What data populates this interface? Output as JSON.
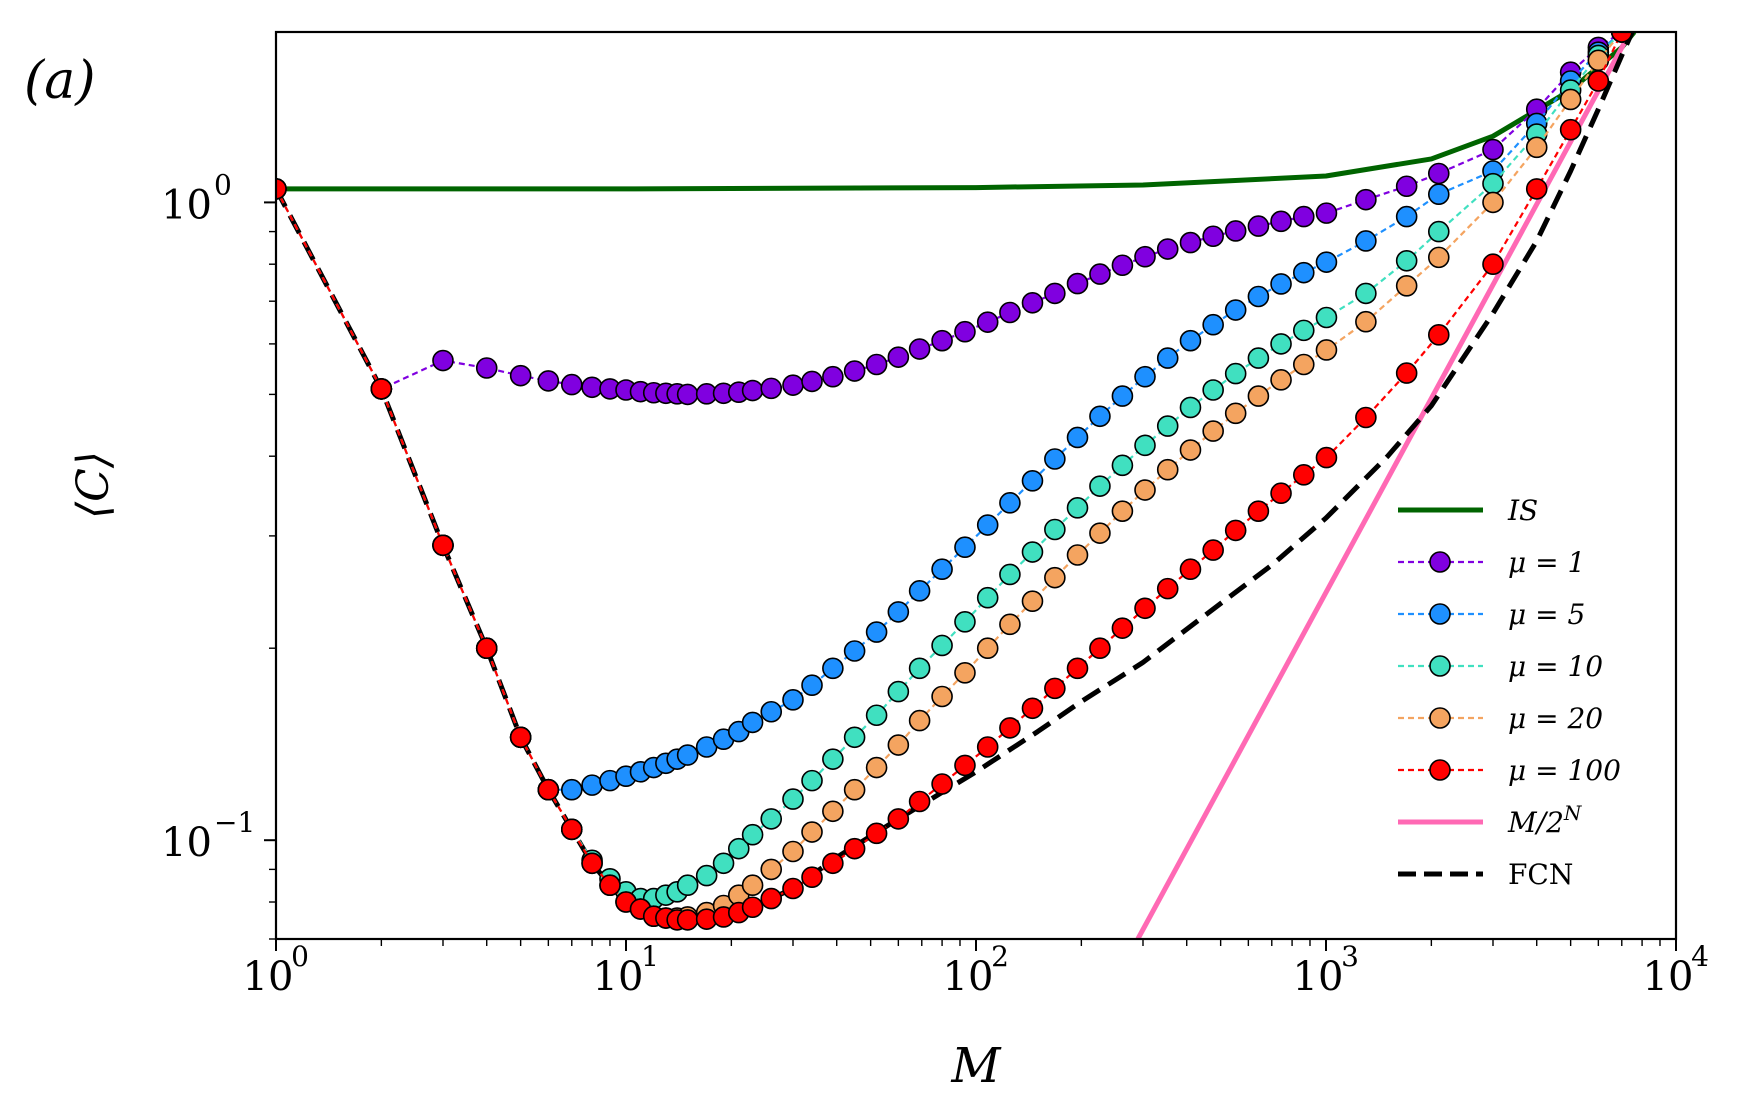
{
  "chart_data": {
    "type": "line",
    "panel_label": "(a)",
    "title": "",
    "xlabel": "M",
    "ylabel": "⟨C⟩",
    "xscale": "log",
    "yscale": "log",
    "xlim": [
      1,
      10000
    ],
    "ylim": [
      0.07,
      1.85
    ],
    "x_ticks": [
      {
        "value": 1,
        "base": "10",
        "exp": "0"
      },
      {
        "value": 10,
        "base": "10",
        "exp": "1"
      },
      {
        "value": 100,
        "base": "10",
        "exp": "2"
      },
      {
        "value": 1000,
        "base": "10",
        "exp": "3"
      },
      {
        "value": 10000,
        "base": "10",
        "exp": "4"
      }
    ],
    "y_ticks": [
      {
        "value": 1,
        "base": "10",
        "exp": "0"
      },
      {
        "value": 0.1,
        "base": "10",
        "exp": "−1"
      }
    ],
    "grid": false,
    "legend_position": "lower-right",
    "series": [
      {
        "name": "IS",
        "label_italic": true,
        "style": "solid",
        "marker": false,
        "color": "#006400",
        "x": [
          1,
          10,
          100,
          300,
          1000,
          2000,
          3000,
          5000,
          7000,
          7600
        ],
        "y": [
          1.05,
          1.05,
          1.055,
          1.065,
          1.1,
          1.17,
          1.27,
          1.5,
          1.75,
          1.85
        ]
      },
      {
        "name": "μ = 1",
        "style": "dashed",
        "marker": true,
        "color": "#8000e0",
        "x": [
          1,
          2,
          3,
          4,
          5,
          6,
          7,
          8,
          9,
          10,
          11,
          12,
          13,
          14,
          15,
          17,
          19,
          21,
          23,
          26,
          30,
          34,
          39,
          45,
          52,
          60,
          69,
          80,
          93,
          108,
          125,
          145,
          168,
          195,
          226,
          262,
          304,
          353,
          410,
          476,
          552,
          641,
          744,
          864,
          1003,
          1300,
          1700,
          2100,
          3000,
          4000,
          5000,
          6000,
          7000
        ],
        "y": [
          1.05,
          0.51,
          0.565,
          0.55,
          0.535,
          0.525,
          0.518,
          0.513,
          0.51,
          0.508,
          0.505,
          0.503,
          0.502,
          0.501,
          0.5,
          0.501,
          0.502,
          0.504,
          0.507,
          0.511,
          0.517,
          0.524,
          0.533,
          0.544,
          0.557,
          0.572,
          0.589,
          0.607,
          0.627,
          0.649,
          0.672,
          0.696,
          0.72,
          0.746,
          0.772,
          0.797,
          0.822,
          0.845,
          0.865,
          0.885,
          0.902,
          0.918,
          0.934,
          0.95,
          0.962,
          1.01,
          1.06,
          1.11,
          1.21,
          1.4,
          1.6,
          1.75,
          1.85
        ]
      },
      {
        "name": "μ = 5",
        "style": "dashed",
        "marker": true,
        "color": "#1e90ff",
        "x": [
          1,
          2,
          3,
          4,
          5,
          6,
          7,
          8,
          9,
          10,
          11,
          12,
          13,
          14,
          15,
          17,
          19,
          21,
          23,
          26,
          30,
          34,
          39,
          45,
          52,
          60,
          69,
          80,
          93,
          108,
          125,
          145,
          168,
          195,
          226,
          262,
          304,
          353,
          410,
          476,
          552,
          641,
          744,
          864,
          1003,
          1300,
          1700,
          2100,
          3000,
          4000,
          5000,
          6000,
          7000
        ],
        "y": [
          1.05,
          0.51,
          0.29,
          0.2,
          0.145,
          0.12,
          0.12,
          0.122,
          0.124,
          0.126,
          0.128,
          0.13,
          0.132,
          0.134,
          0.136,
          0.14,
          0.144,
          0.148,
          0.153,
          0.159,
          0.166,
          0.175,
          0.186,
          0.198,
          0.212,
          0.228,
          0.246,
          0.266,
          0.288,
          0.312,
          0.338,
          0.366,
          0.396,
          0.428,
          0.462,
          0.497,
          0.533,
          0.57,
          0.607,
          0.643,
          0.678,
          0.712,
          0.745,
          0.776,
          0.806,
          0.87,
          0.95,
          1.03,
          1.12,
          1.33,
          1.55,
          1.72,
          1.85
        ]
      },
      {
        "name": "μ = 10",
        "style": "dashed",
        "marker": true,
        "color": "#40e0c0",
        "x": [
          1,
          2,
          3,
          4,
          5,
          6,
          7,
          8,
          9,
          10,
          11,
          12,
          13,
          14,
          15,
          17,
          19,
          21,
          23,
          26,
          30,
          34,
          39,
          45,
          52,
          60,
          69,
          80,
          93,
          108,
          125,
          145,
          168,
          195,
          226,
          262,
          304,
          353,
          410,
          476,
          552,
          641,
          744,
          864,
          1003,
          1300,
          1700,
          2100,
          3000,
          4000,
          5000,
          6000,
          7000
        ],
        "y": [
          1.05,
          0.51,
          0.29,
          0.2,
          0.145,
          0.12,
          0.104,
          0.093,
          0.087,
          0.083,
          0.081,
          0.081,
          0.082,
          0.083,
          0.085,
          0.088,
          0.092,
          0.097,
          0.102,
          0.108,
          0.116,
          0.124,
          0.134,
          0.145,
          0.157,
          0.171,
          0.186,
          0.202,
          0.22,
          0.24,
          0.261,
          0.283,
          0.307,
          0.332,
          0.359,
          0.387,
          0.416,
          0.446,
          0.477,
          0.508,
          0.539,
          0.57,
          0.6,
          0.63,
          0.66,
          0.72,
          0.81,
          0.9,
          1.07,
          1.28,
          1.5,
          1.7,
          1.85
        ]
      },
      {
        "name": "μ = 20",
        "style": "dashed",
        "marker": true,
        "color": "#f4a460",
        "x": [
          1,
          2,
          3,
          4,
          5,
          6,
          7,
          8,
          9,
          10,
          11,
          12,
          13,
          14,
          15,
          17,
          19,
          21,
          23,
          26,
          30,
          34,
          39,
          45,
          52,
          60,
          69,
          80,
          93,
          108,
          125,
          145,
          168,
          195,
          226,
          262,
          304,
          353,
          410,
          476,
          552,
          641,
          744,
          864,
          1003,
          1300,
          1700,
          2100,
          3000,
          4000,
          5000,
          6000,
          7000
        ],
        "y": [
          1.05,
          0.51,
          0.29,
          0.2,
          0.145,
          0.12,
          0.104,
          0.092,
          0.085,
          0.08,
          0.078,
          0.076,
          0.0755,
          0.0755,
          0.0758,
          0.077,
          0.079,
          0.082,
          0.085,
          0.09,
          0.096,
          0.103,
          0.111,
          0.12,
          0.13,
          0.141,
          0.154,
          0.168,
          0.183,
          0.2,
          0.218,
          0.237,
          0.258,
          0.28,
          0.303,
          0.328,
          0.354,
          0.381,
          0.409,
          0.438,
          0.467,
          0.497,
          0.527,
          0.557,
          0.587,
          0.65,
          0.74,
          0.82,
          1.0,
          1.22,
          1.45,
          1.67,
          1.85
        ]
      },
      {
        "name": "μ = 100",
        "style": "dashed",
        "marker": true,
        "color": "#ff0000",
        "x": [
          1,
          2,
          3,
          4,
          5,
          6,
          7,
          8,
          9,
          10,
          11,
          12,
          13,
          14,
          15,
          17,
          19,
          21,
          23,
          26,
          30,
          34,
          39,
          45,
          52,
          60,
          69,
          80,
          93,
          108,
          125,
          145,
          168,
          195,
          226,
          262,
          304,
          353,
          410,
          476,
          552,
          641,
          744,
          864,
          1003,
          1300,
          1700,
          2100,
          3000,
          4000,
          5000,
          6000,
          7000
        ],
        "y": [
          1.05,
          0.51,
          0.29,
          0.2,
          0.145,
          0.12,
          0.104,
          0.092,
          0.085,
          0.08,
          0.078,
          0.076,
          0.0755,
          0.075,
          0.075,
          0.0752,
          0.0758,
          0.077,
          0.0785,
          0.081,
          0.084,
          0.0875,
          0.092,
          0.097,
          0.1025,
          0.108,
          0.115,
          0.1225,
          0.131,
          0.14,
          0.15,
          0.161,
          0.173,
          0.186,
          0.2,
          0.215,
          0.231,
          0.248,
          0.266,
          0.285,
          0.306,
          0.328,
          0.35,
          0.374,
          0.398,
          0.46,
          0.54,
          0.62,
          0.8,
          1.05,
          1.3,
          1.55,
          1.85
        ]
      },
      {
        "name": "M/2^N",
        "label_base": "M/2",
        "label_exp": "N",
        "style": "solid",
        "marker": false,
        "color": "#ff69b4",
        "x": [
          290,
          7400
        ],
        "y": [
          0.07,
          1.85
        ]
      },
      {
        "name": "FCN",
        "style": "longdash",
        "marker": false,
        "color": "#000000",
        "x": [
          1,
          2,
          3,
          4,
          5,
          6,
          7,
          8,
          9,
          10,
          11,
          12,
          13,
          14,
          15,
          17,
          19,
          21,
          23,
          26,
          30,
          40,
          60,
          100,
          150,
          200,
          300,
          500,
          700,
          1000,
          1500,
          2000,
          3000,
          4000,
          5000,
          6000,
          7000,
          7500
        ],
        "y": [
          1.05,
          0.51,
          0.29,
          0.2,
          0.145,
          0.12,
          0.104,
          0.092,
          0.085,
          0.08,
          0.078,
          0.076,
          0.0755,
          0.075,
          0.075,
          0.0752,
          0.0758,
          0.077,
          0.0785,
          0.081,
          0.084,
          0.094,
          0.108,
          0.128,
          0.148,
          0.165,
          0.19,
          0.235,
          0.27,
          0.32,
          0.4,
          0.48,
          0.67,
          0.87,
          1.12,
          1.4,
          1.7,
          1.85
        ]
      }
    ]
  }
}
